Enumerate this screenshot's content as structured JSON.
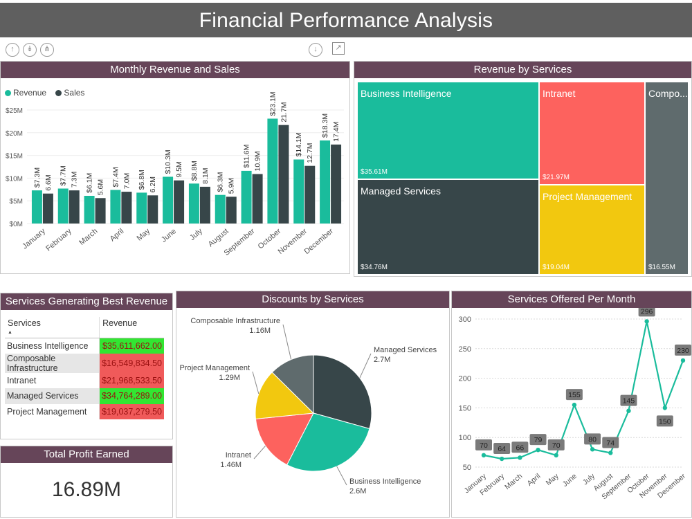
{
  "title": "Financial Performance Analysis",
  "toolbar": {
    "left_icons": [
      "arrow-up-icon",
      "double-arrow-down-icon",
      "expand-hierarchy-icon"
    ],
    "right_icons": [
      "drill-down-icon",
      "focus-mode-icon"
    ]
  },
  "panels": {
    "monthly": "Monthly Revenue and  Sales",
    "treemap": "Revenue by Services",
    "table": "Services Generating Best Revenue",
    "pie": "Discounts by Services",
    "line": "Services Offered Per Month",
    "kpi": "Total Profit Earned"
  },
  "colors": {
    "header": "#664559",
    "title_bar": "#5f5f5f",
    "teal": "#1ABC9C",
    "dark": "#374649",
    "red": "#FD625E",
    "yellow": "#F2C80F",
    "gray": "#5F6B6D"
  },
  "chart_data": [
    {
      "type": "bar",
      "title": "Monthly Revenue and  Sales",
      "categories": [
        "January",
        "February",
        "March",
        "April",
        "May",
        "June",
        "July",
        "August",
        "September",
        "October",
        "November",
        "December"
      ],
      "series": [
        {
          "name": "Revenue",
          "color": "#1ABC9C",
          "values": [
            7.3,
            7.7,
            6.1,
            7.4,
            6.8,
            10.3,
            8.8,
            6.3,
            11.6,
            23.1,
            14.1,
            18.3
          ],
          "labels": [
            "$7.3M",
            "$7.7M",
            "$6.1M",
            "$7.4M",
            "$6.8M",
            "$10.3M",
            "$8.8M",
            "$6.3M",
            "$11.6M",
            "$23.1M",
            "$14.1M",
            "$18.3M"
          ]
        },
        {
          "name": "Sales",
          "color": "#374649",
          "values": [
            6.6,
            7.3,
            5.6,
            7.0,
            6.2,
            9.5,
            8.1,
            5.9,
            10.9,
            21.7,
            12.7,
            17.4
          ],
          "labels": [
            "6.6M",
            "7.3M",
            "5.6M",
            "7.0M",
            "6.2M",
            "9.5M",
            "8.1M",
            "5.9M",
            "10.9M",
            "21.7M",
            "12.7M",
            "17.4M"
          ]
        }
      ],
      "y_ticks": [
        "$0M",
        "$5M",
        "$10M",
        "$15M",
        "$20M",
        "$25M"
      ],
      "ylim": [
        0,
        25
      ]
    },
    {
      "type": "treemap",
      "title": "Revenue by Services",
      "items": [
        {
          "name": "Business Intelligence",
          "value_label": "$35.61M",
          "color": "#1ABC9C"
        },
        {
          "name": "Managed Services",
          "value_label": "$34.76M",
          "color": "#374649"
        },
        {
          "name": "Intranet",
          "value_label": "$21.97M",
          "color": "#FD625E"
        },
        {
          "name": "Project Management",
          "value_label": "$19.04M",
          "color": "#F2C80F"
        },
        {
          "name": "Compo...",
          "value_label": "$16.55M",
          "color": "#5F6B6D"
        }
      ]
    },
    {
      "type": "table",
      "title": "Services Generating Best Revenue",
      "columns": [
        "Services",
        "Revenue"
      ],
      "rows": [
        {
          "service": "Business Intelligence",
          "revenue": "$35,611,662.00",
          "status": "good"
        },
        {
          "service": "Composable Infrastructure",
          "revenue": "$16,549,834.50",
          "status": "bad"
        },
        {
          "service": "Intranet",
          "revenue": "$21,968,533.50",
          "status": "bad"
        },
        {
          "service": "Managed Services",
          "revenue": "$34,764,289.00",
          "status": "good"
        },
        {
          "service": "Project Management",
          "revenue": "$19,037,279.50",
          "status": "bad"
        }
      ]
    },
    {
      "type": "pie",
      "title": "Discounts by Services",
      "slices": [
        {
          "name": "Managed Services",
          "value": 2.7,
          "label": "2.7M",
          "color": "#374649"
        },
        {
          "name": "Business Intelligence",
          "value": 2.6,
          "label": "2.6M",
          "color": "#1ABC9C"
        },
        {
          "name": "Intranet",
          "value": 1.46,
          "label": "1.46M",
          "color": "#FD625E"
        },
        {
          "name": "Project Management",
          "value": 1.29,
          "label": "1.29M",
          "color": "#F2C80F"
        },
        {
          "name": "Composable Infrastructure",
          "value": 1.16,
          "label": "1.16M",
          "color": "#5F6B6D"
        }
      ]
    },
    {
      "type": "line",
      "title": "Services Offered Per Month",
      "categories": [
        "January",
        "February",
        "March",
        "April",
        "May",
        "June",
        "July",
        "August",
        "September",
        "October",
        "November",
        "December"
      ],
      "values": [
        70,
        64,
        66,
        79,
        70,
        155,
        80,
        74,
        145,
        296,
        150,
        230
      ],
      "labels": [
        "70",
        "64",
        "66",
        "79",
        "70",
        "155",
        "80",
        "74",
        "145",
        "296",
        "150",
        "230"
      ],
      "y_ticks": [
        "50",
        "100",
        "150",
        "200",
        "250",
        "300"
      ],
      "ylim": [
        50,
        300
      ],
      "color": "#1ABC9C"
    }
  ],
  "kpi": {
    "value": "16.89M"
  }
}
